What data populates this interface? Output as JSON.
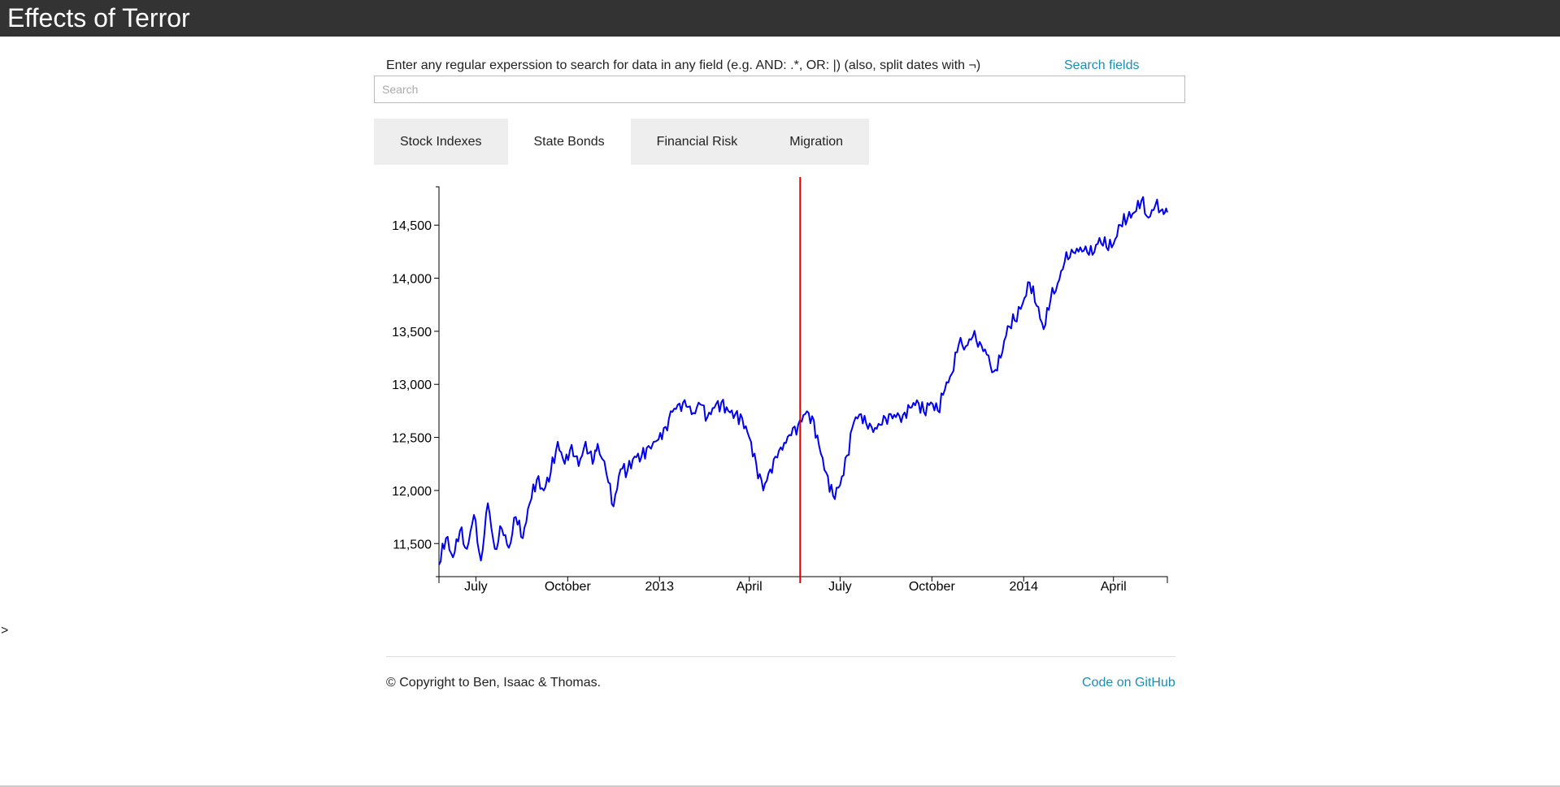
{
  "header": {
    "title": "Effects of Terror"
  },
  "search": {
    "help_text": "Enter any regular experssion to search for data in any field (e.g. AND: .*, OR: |) (also, split dates with ¬)",
    "fields_link": "Search fields",
    "placeholder": "Search",
    "value": ""
  },
  "tabs": [
    {
      "label": "Stock Indexes",
      "active": false
    },
    {
      "label": "State Bonds",
      "active": true
    },
    {
      "label": "Financial Risk",
      "active": false
    },
    {
      "label": "Migration",
      "active": false
    }
  ],
  "misc": {
    "caret": ">"
  },
  "footer": {
    "copyright": "© Copyright to Ben, Isaac & Thomas.",
    "github": "Code on GitHub"
  },
  "colors": {
    "header_bg": "#333333",
    "link": "#1a8fb3",
    "line": "#0000ee",
    "marker": "#dd0000",
    "tab_bg": "#eeeeee"
  },
  "chart_data": {
    "type": "line",
    "title": "",
    "xlabel": "",
    "ylabel": "",
    "x_ticks": [
      "July",
      "October",
      "2013",
      "April",
      "July",
      "October",
      "2014",
      "April"
    ],
    "y_ticks": [
      "11,500",
      "12,000",
      "12,500",
      "13,000",
      "13,500",
      "14,000",
      "14,500"
    ],
    "ylim": [
      11280,
      14800
    ],
    "xlim": [
      "2012-05-25",
      "2014-05-25"
    ],
    "event_marker_date": "2013-05-22",
    "series": [
      {
        "points": [
          [
            "2012-05-25",
            11300
          ],
          [
            "2012-06-01",
            11550
          ],
          [
            "2012-06-08",
            11370
          ],
          [
            "2012-06-15",
            11620
          ],
          [
            "2012-06-22",
            11450
          ],
          [
            "2012-06-29",
            11770
          ],
          [
            "2012-07-06",
            11340
          ],
          [
            "2012-07-13",
            11880
          ],
          [
            "2012-07-20",
            11450
          ],
          [
            "2012-07-27",
            11640
          ],
          [
            "2012-08-03",
            11460
          ],
          [
            "2012-08-10",
            11750
          ],
          [
            "2012-08-17",
            11550
          ],
          [
            "2012-08-24",
            11880
          ],
          [
            "2012-08-31",
            12100
          ],
          [
            "2012-09-07",
            12000
          ],
          [
            "2012-09-14",
            12170
          ],
          [
            "2012-09-21",
            12460
          ],
          [
            "2012-09-28",
            12250
          ],
          [
            "2012-10-05",
            12430
          ],
          [
            "2012-10-12",
            12230
          ],
          [
            "2012-10-19",
            12460
          ],
          [
            "2012-10-26",
            12250
          ],
          [
            "2012-10-31",
            12440
          ],
          [
            "2012-11-09",
            12150
          ],
          [
            "2012-11-16",
            11850
          ],
          [
            "2012-11-23",
            12200
          ],
          [
            "2012-11-30",
            12190
          ],
          [
            "2012-12-07",
            12320
          ],
          [
            "2012-12-14",
            12320
          ],
          [
            "2012-12-21",
            12420
          ],
          [
            "2012-12-31",
            12480
          ],
          [
            "2013-01-07",
            12600
          ],
          [
            "2013-01-14",
            12740
          ],
          [
            "2013-01-21",
            12820
          ],
          [
            "2013-01-28",
            12790
          ],
          [
            "2013-02-04",
            12730
          ],
          [
            "2013-02-11",
            12810
          ],
          [
            "2013-02-18",
            12690
          ],
          [
            "2013-02-25",
            12780
          ],
          [
            "2013-03-04",
            12830
          ],
          [
            "2013-03-11",
            12750
          ],
          [
            "2013-03-18",
            12720
          ],
          [
            "2013-03-25",
            12680
          ],
          [
            "2013-04-01",
            12500
          ],
          [
            "2013-04-08",
            12250
          ],
          [
            "2013-04-15",
            12000
          ],
          [
            "2013-04-22",
            12200
          ],
          [
            "2013-04-29",
            12310
          ],
          [
            "2013-05-06",
            12450
          ],
          [
            "2013-05-13",
            12520
          ],
          [
            "2013-05-20",
            12620
          ],
          [
            "2013-05-27",
            12720
          ],
          [
            "2013-06-03",
            12700
          ],
          [
            "2013-06-10",
            12420
          ],
          [
            "2013-06-17",
            12170
          ],
          [
            "2013-06-24",
            11950
          ],
          [
            "2013-07-01",
            12050
          ],
          [
            "2013-07-08",
            12330
          ],
          [
            "2013-07-15",
            12650
          ],
          [
            "2013-07-22",
            12720
          ],
          [
            "2013-07-29",
            12580
          ],
          [
            "2013-08-05",
            12590
          ],
          [
            "2013-08-12",
            12620
          ],
          [
            "2013-08-19",
            12720
          ],
          [
            "2013-08-26",
            12690
          ],
          [
            "2013-09-02",
            12710
          ],
          [
            "2013-09-09",
            12780
          ],
          [
            "2013-09-16",
            12850
          ],
          [
            "2013-09-23",
            12740
          ],
          [
            "2013-09-30",
            12830
          ],
          [
            "2013-10-07",
            12750
          ],
          [
            "2013-10-14",
            12950
          ],
          [
            "2013-10-21",
            13100
          ],
          [
            "2013-10-28",
            13380
          ],
          [
            "2013-11-04",
            13360
          ],
          [
            "2013-11-11",
            13450
          ],
          [
            "2013-11-18",
            13400
          ],
          [
            "2013-11-25",
            13280
          ],
          [
            "2013-12-02",
            13120
          ],
          [
            "2013-12-09",
            13250
          ],
          [
            "2013-12-16",
            13550
          ],
          [
            "2013-12-23",
            13600
          ],
          [
            "2013-12-31",
            13760
          ],
          [
            "2014-01-07",
            13960
          ],
          [
            "2014-01-14",
            13740
          ],
          [
            "2014-01-21",
            13520
          ],
          [
            "2014-01-28",
            13800
          ],
          [
            "2014-02-04",
            13950
          ],
          [
            "2014-02-11",
            14150
          ],
          [
            "2014-02-18",
            14270
          ],
          [
            "2014-02-25",
            14250
          ],
          [
            "2014-03-04",
            14300
          ],
          [
            "2014-03-11",
            14220
          ],
          [
            "2014-03-18",
            14380
          ],
          [
            "2014-03-25",
            14290
          ],
          [
            "2014-04-01",
            14320
          ],
          [
            "2014-04-08",
            14500
          ],
          [
            "2014-04-15",
            14560
          ],
          [
            "2014-04-22",
            14620
          ],
          [
            "2014-04-29",
            14730
          ],
          [
            "2014-05-06",
            14570
          ],
          [
            "2014-05-13",
            14690
          ],
          [
            "2014-05-20",
            14650
          ],
          [
            "2014-05-25",
            14620
          ]
        ]
      }
    ]
  }
}
